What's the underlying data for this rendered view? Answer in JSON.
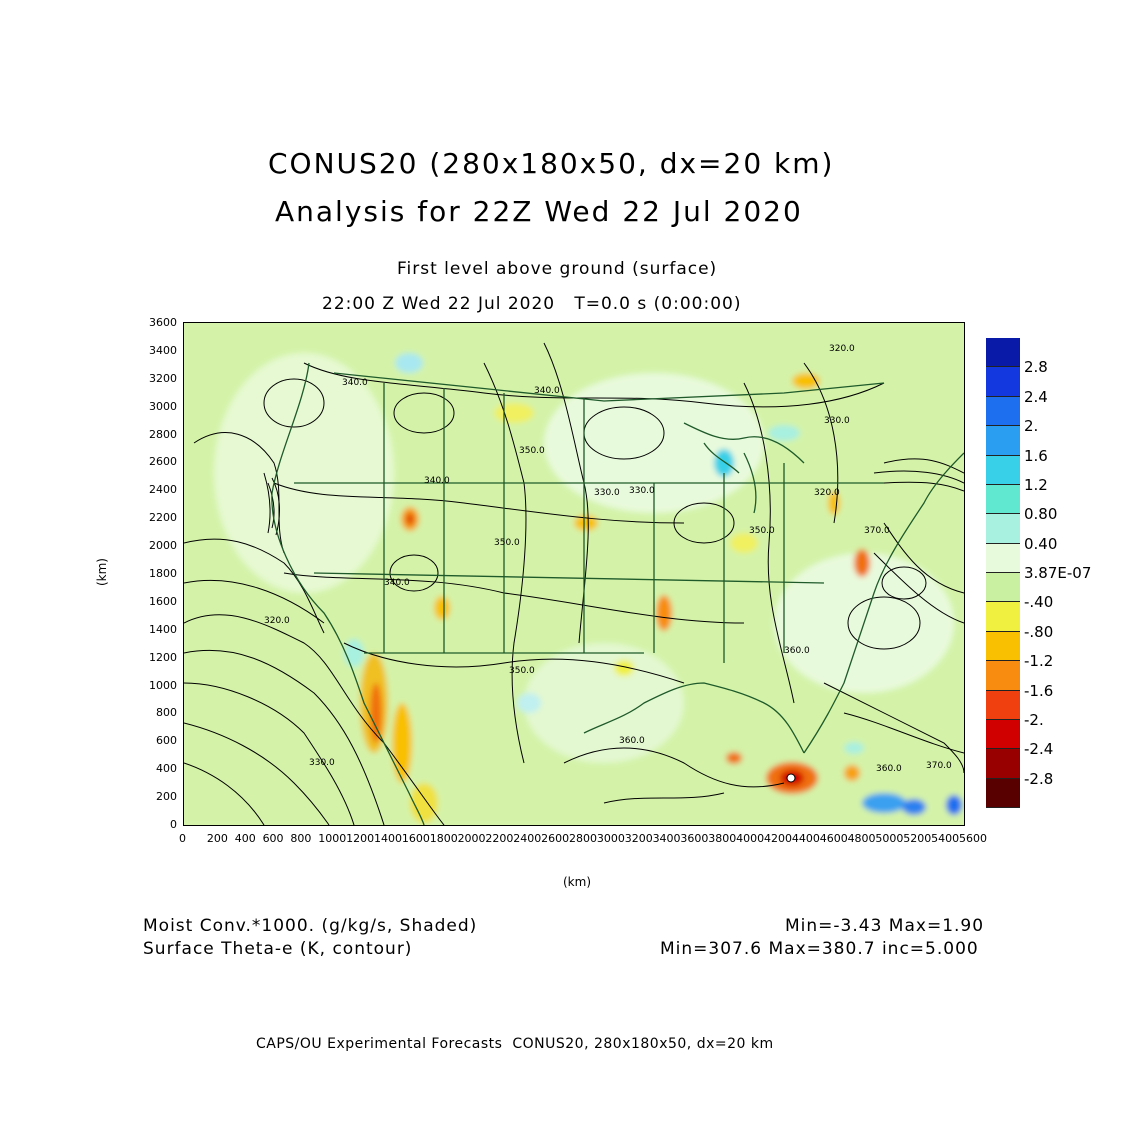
{
  "titles": {
    "line1": "CONUS20 (280x180x50, dx=20 km)",
    "line2": "Analysis for 22Z Wed 22 Jul 2020",
    "line3": "First level above ground (surface)",
    "line4": "22:00 Z Wed 22 Jul 2020   T=0.0 s (0:00:00)"
  },
  "axes": {
    "xlabel": "(km)",
    "ylabel": "(km)",
    "xticks": [
      "0",
      "200",
      "400",
      "600",
      "800",
      "1000",
      "1200",
      "1400",
      "1600",
      "1800",
      "2000",
      "2200",
      "2400",
      "2600",
      "2800",
      "3000",
      "3200",
      "3400",
      "3600",
      "3800",
      "4000",
      "4200",
      "4400",
      "4600",
      "4800",
      "5000",
      "5200",
      "5400",
      "5600"
    ],
    "yticks": [
      "3600",
      "3400",
      "3200",
      "3000",
      "2800",
      "2600",
      "2400",
      "2200",
      "2000",
      "1800",
      "1600",
      "1400",
      "1200",
      "1000",
      "800",
      "600",
      "400",
      "200",
      "0"
    ],
    "xlim": [
      0,
      5600
    ],
    "ylim": [
      0,
      3600
    ]
  },
  "contour_labels": [
    "340.0",
    "340.0",
    "350.0",
    "340.0",
    "350.0",
    "330.0",
    "320.0",
    "340.0",
    "350.0",
    "360.0",
    "330.0",
    "320.0",
    "330.0",
    "350.0",
    "360.0",
    "370.0",
    "370.0",
    "360.0",
    "330.0",
    "320.0"
  ],
  "colorbar": {
    "labels": [
      "2.8",
      "2.4",
      "2.",
      "1.6",
      "1.2",
      "0.80",
      "0.40",
      "3.87E-07",
      "-.40",
      "-.80",
      "-1.2",
      "-1.6",
      "-2.",
      "-2.4",
      "-2.8"
    ],
    "colors": [
      "#0a1aa8",
      "#1438e0",
      "#1e6ef0",
      "#2a9ef0",
      "#38d0e8",
      "#60e8d0",
      "#a8f0e0",
      "#e8fadc",
      "#c8f0a0",
      "#f0f040",
      "#f8c000",
      "#f88c10",
      "#f04010",
      "#d00000",
      "#980000",
      "#580000"
    ]
  },
  "footer": {
    "field1": "Moist Conv.*1000. (g/kg/s, Shaded)",
    "field1_stats": "Min=-3.43 Max=1.90",
    "field2": "Surface Theta-e (K, contour)",
    "field2_stats": "Min=307.6 Max=380.7 inc=5.000",
    "credit": "CAPS/OU Experimental Forecasts  CONUS20, 280x180x50, dx=20 km"
  }
}
